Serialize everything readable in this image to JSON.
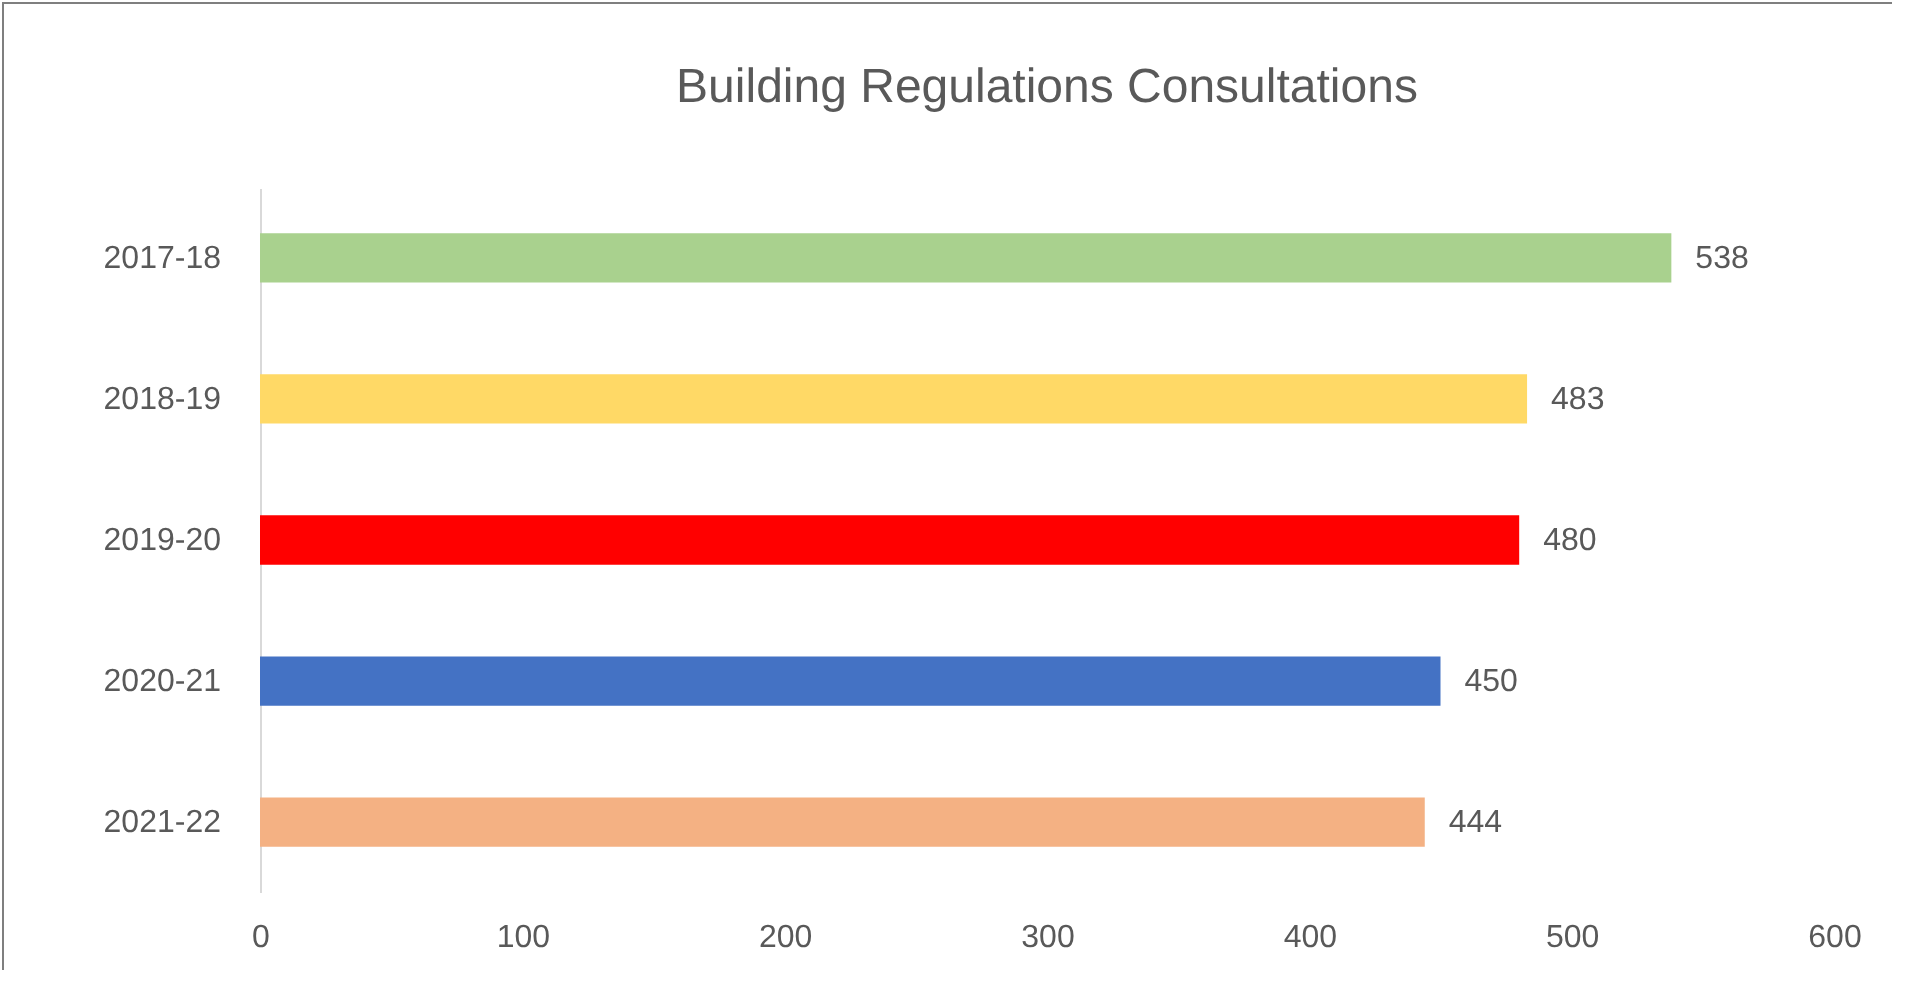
{
  "chart_data": {
    "type": "bar",
    "orientation": "horizontal",
    "title": "Building Regulations Consultations",
    "categories": [
      "2017-18",
      "2018-19",
      "2019-20",
      "2020-21",
      "2021-22"
    ],
    "values": [
      538,
      483,
      480,
      450,
      444
    ],
    "colors": [
      "#a9d18e",
      "#ffd966",
      "#ff0000",
      "#4472c4",
      "#f4b183"
    ],
    "xlim": [
      0,
      600
    ],
    "xticks": [
      0,
      100,
      200,
      300,
      400,
      500,
      600
    ],
    "grid": false,
    "data_labels": true
  }
}
